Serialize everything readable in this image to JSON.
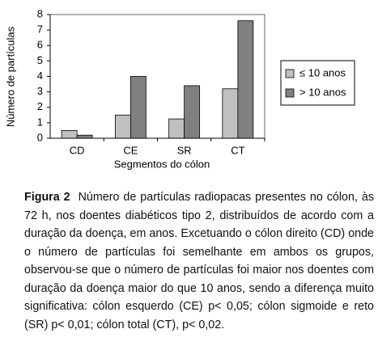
{
  "chart_data": {
    "type": "bar",
    "y_label": "Número de partículas",
    "x_label": "Segmentos do cólon",
    "categories": [
      "CD",
      "CE",
      "SR",
      "CT"
    ],
    "series": [
      {
        "name": "≤ 10 anos",
        "color": "#c0c0c0",
        "values": [
          0.5,
          1.5,
          1.25,
          3.2
        ]
      },
      {
        "name": "> 10 anos",
        "color": "#808080",
        "values": [
          0.2,
          4.0,
          3.4,
          7.6
        ]
      }
    ],
    "ylim": [
      0,
      8
    ],
    "yticks": [
      0,
      1,
      2,
      3,
      4,
      5,
      6,
      7,
      8
    ],
    "grid": false,
    "legend": "right"
  },
  "caption": {
    "label": "Figura 2",
    "text": "Número de partículas radiopacas presentes no cólon, às 72 h, nos doentes diabéticos tipo 2, distribuídos de acordo com a duração da doença, em anos. Excetuando o cólon direito (CD) onde o número de partículas foi semelhante em ambos os grupos, observou-se que o número de partículas foi maior nos doentes com duração da doença maior do que 10 anos, sendo a diferença muito significativa: cólon esquerdo (CE) p< 0,05; cólon sigmoide e reto (SR) p< 0,01; cólon total (CT), p< 0,02."
  }
}
